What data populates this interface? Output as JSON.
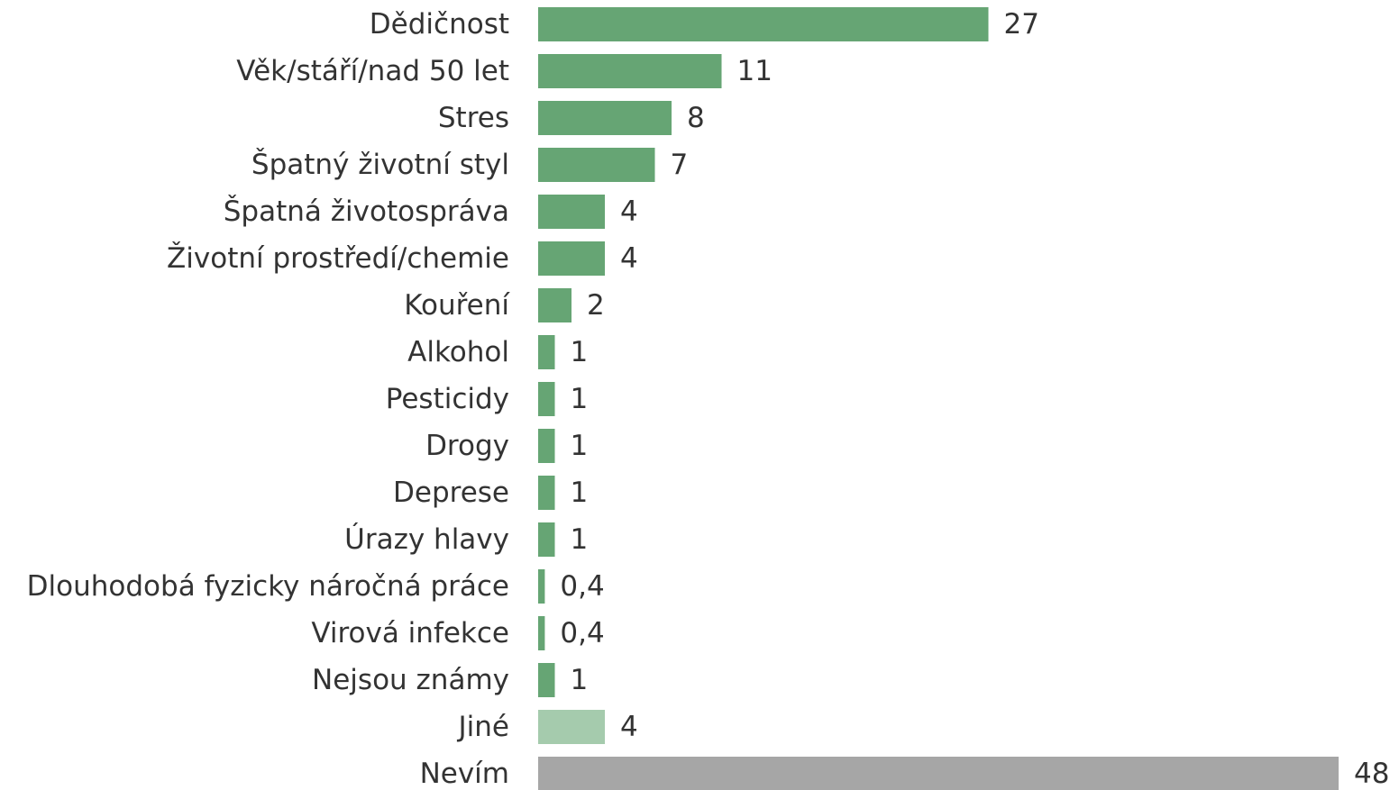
{
  "chart_data": {
    "type": "bar",
    "orientation": "horizontal",
    "categories": [
      "Dědičnost",
      "Věk/stáří/nad 50 let",
      "Stres",
      "Špatný životní styl",
      "Špatná životospráva",
      "Životní prostředí/chemie",
      "Kouření",
      "Alkohol",
      "Pesticidy",
      "Drogy",
      "Deprese",
      "Úrazy hlavy",
      "Dlouhodobá fyzicky náročná práce",
      "Virová infekce",
      "Nejsou známy",
      "Jiné",
      "Nevím"
    ],
    "values": [
      27,
      11,
      8,
      7,
      4,
      4,
      2,
      1,
      1,
      1,
      1,
      1,
      0.4,
      0.4,
      1,
      4,
      48
    ],
    "value_labels": [
      "27",
      "11",
      "8",
      "7",
      "4",
      "4",
      "2",
      "1",
      "1",
      "1",
      "1",
      "1",
      "0,4",
      "0,4",
      "1",
      "4",
      "48"
    ],
    "bar_colors": [
      "#66a574",
      "#66a574",
      "#66a574",
      "#66a574",
      "#66a574",
      "#66a574",
      "#66a574",
      "#66a574",
      "#66a574",
      "#66a574",
      "#66a574",
      "#66a574",
      "#66a574",
      "#66a574",
      "#66a574",
      "#a5cbad",
      "#a6a6a6"
    ],
    "xlim": [
      0,
      48
    ],
    "grid": false,
    "legend": "none",
    "title": "",
    "xlabel": "",
    "ylabel": ""
  }
}
